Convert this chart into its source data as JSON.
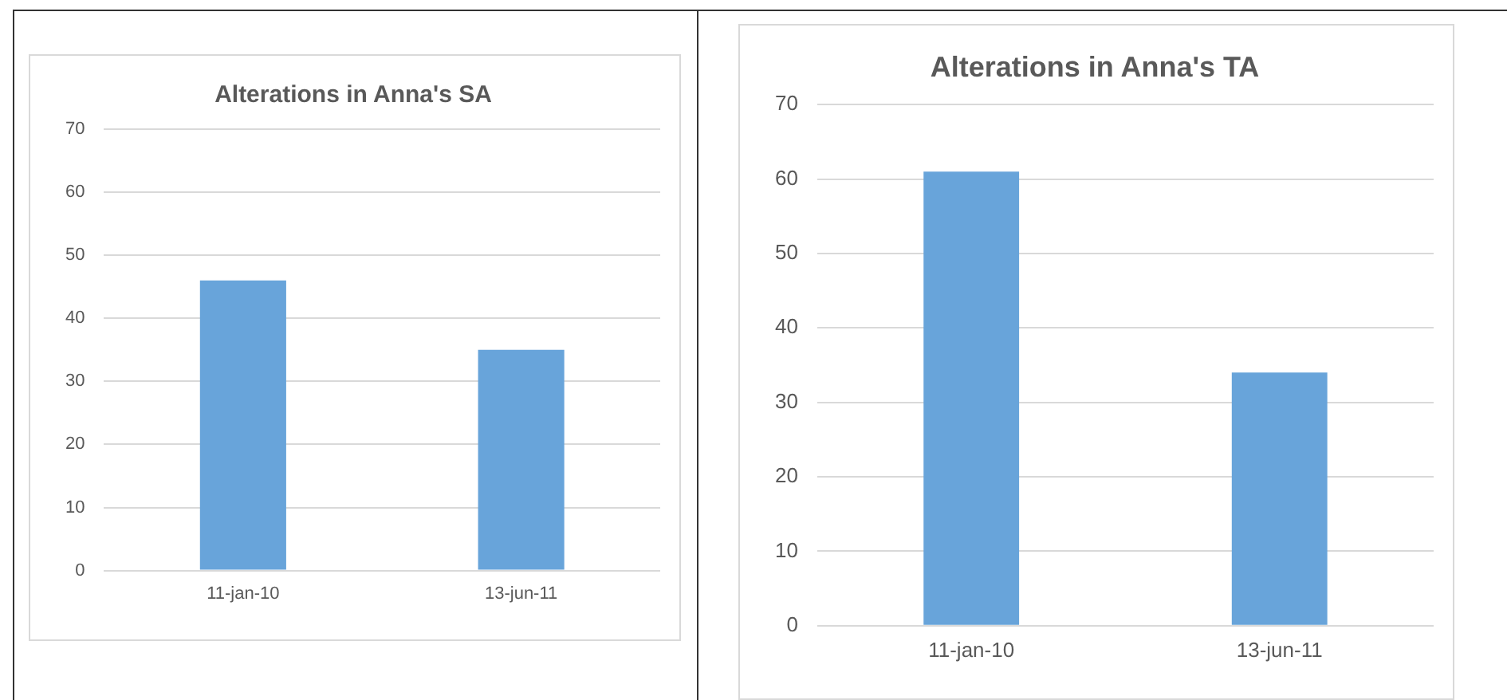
{
  "chart_data": [
    {
      "type": "bar",
      "title": "Alterations in Anna's SA",
      "categories": [
        "11-jan-10",
        "13-jun-11"
      ],
      "values": [
        46,
        35
      ],
      "color": "#68a4da",
      "ylim": [
        0,
        70
      ],
      "yticks": [
        0,
        10,
        20,
        30,
        40,
        50,
        60,
        70
      ],
      "grid": "y"
    },
    {
      "type": "bar",
      "title": "Alterations in Anna's TA",
      "categories": [
        "11-jan-10",
        "13-jun-11"
      ],
      "values": [
        61,
        34
      ],
      "color": "#68a4da",
      "ylim": [
        0,
        70
      ],
      "yticks": [
        0,
        10,
        20,
        30,
        40,
        50,
        60,
        70
      ],
      "grid": "y"
    }
  ]
}
